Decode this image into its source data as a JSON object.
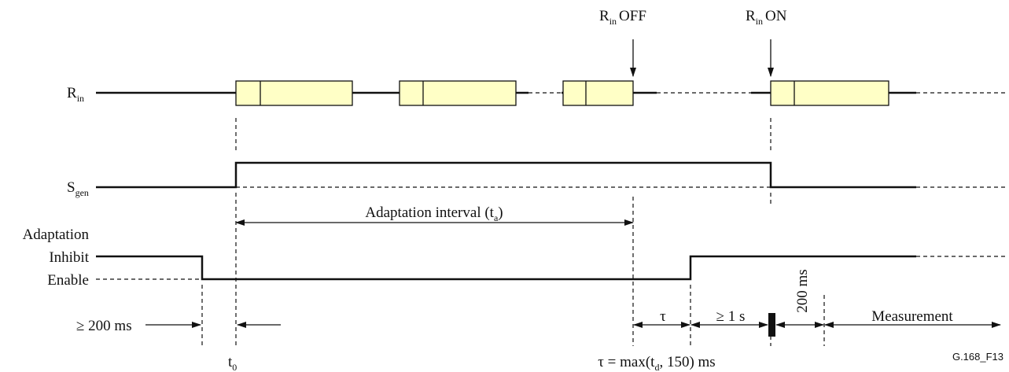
{
  "signals": {
    "r_in": {
      "label": "R",
      "sub": "in"
    },
    "s_gen": {
      "label": "S",
      "sub": "gen"
    },
    "adaptation": {
      "label": "Adaptation",
      "inhibit": "Inhibit",
      "enable": "Enable"
    }
  },
  "events": {
    "r_in_off": {
      "label": "R",
      "sub": "in",
      "text": "OFF"
    },
    "r_in_on": {
      "label": "R",
      "sub": "in",
      "text": "ON"
    }
  },
  "intervals": {
    "adaptation": {
      "text": "Adaptation interval (t",
      "sub": "a",
      "end": ")"
    },
    "min_gap": "≥ 200 ms",
    "tau": "τ",
    "one_second": "≥ 1 s",
    "two_hundred": "200 ms",
    "measurement": "Measurement"
  },
  "times": {
    "t0": {
      "label": "t",
      "sub": "0"
    },
    "tau_def": {
      "text": "τ = max(t",
      "sub": "d",
      "end": ", 150) ms"
    }
  },
  "figure_id": "G.168_F13"
}
